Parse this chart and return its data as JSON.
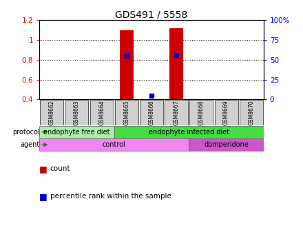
{
  "title": "GDS491 / 5558",
  "samples": [
    "GSM8662",
    "GSM8663",
    "GSM8664",
    "GSM8665",
    "GSM8666",
    "GSM8667",
    "GSM8668",
    "GSM8669",
    "GSM8670"
  ],
  "count_values": [
    null,
    null,
    null,
    1.1,
    0.4,
    1.12,
    null,
    null,
    null
  ],
  "percentile_values": [
    null,
    null,
    null,
    0.84,
    0.44,
    0.85,
    null,
    null,
    null
  ],
  "ylim_left": [
    0.4,
    1.2
  ],
  "ylim_right": [
    0,
    100
  ],
  "yticks_left": [
    0.4,
    0.6,
    0.8,
    1.0,
    1.2
  ],
  "ytick_left_labels": [
    "0.4",
    "0.6",
    "0.8",
    "1",
    "1.2"
  ],
  "yticks_right": [
    0,
    25,
    50,
    75,
    100
  ],
  "ytick_right_labels": [
    "0",
    "25",
    "50",
    "75",
    "100%"
  ],
  "count_color": "#cc0000",
  "percentile_color": "#0000cc",
  "bar_width": 0.55,
  "protocol_groups": [
    {
      "label": "endophyte free diet",
      "start": 0,
      "end": 3,
      "color": "#aaeea8"
    },
    {
      "label": "endophyte infected diet",
      "start": 3,
      "end": 9,
      "color": "#44dd44"
    }
  ],
  "agent_groups": [
    {
      "label": "control",
      "start": 0,
      "end": 6,
      "color": "#ee88ee"
    },
    {
      "label": "domperidone",
      "start": 6,
      "end": 9,
      "color": "#cc55cc"
    }
  ],
  "sample_box_color": "#d0d0d0",
  "grid_color": "#000000",
  "gridline_yticks": [
    0.6,
    0.8,
    1.0
  ]
}
